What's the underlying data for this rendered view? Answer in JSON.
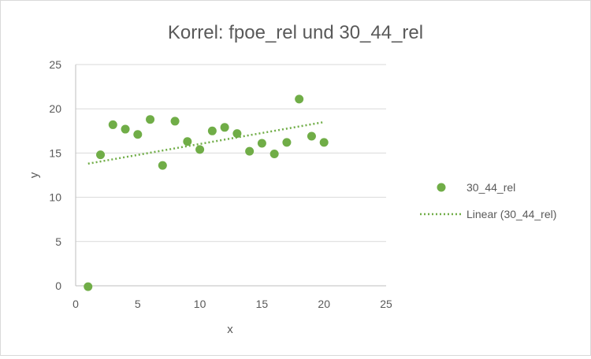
{
  "chart_data": {
    "type": "scatter",
    "title": "Korrel: fpoe_rel und 30_44_rel",
    "xlabel": "x",
    "ylabel": "y",
    "xlim": [
      0,
      25
    ],
    "ylim": [
      0,
      25
    ],
    "xticks": [
      0,
      5,
      10,
      15,
      20,
      25
    ],
    "yticks": [
      0,
      5,
      10,
      15,
      20,
      25
    ],
    "grid": "horizontal",
    "legend_position": "right",
    "series": [
      {
        "name": "30_44_rel",
        "color": "#70AD47",
        "x": [
          1,
          2,
          3,
          4,
          5,
          6,
          7,
          8,
          9,
          10,
          11,
          12,
          13,
          14,
          15,
          16,
          17,
          18,
          19,
          20
        ],
        "y": [
          -0.1,
          14.8,
          18.2,
          17.7,
          17.1,
          18.8,
          13.6,
          18.6,
          16.3,
          15.4,
          17.5,
          17.9,
          17.2,
          15.2,
          16.1,
          14.9,
          16.2,
          21.1,
          16.9,
          16.2
        ]
      }
    ],
    "trendline": {
      "name": "Linear (30_44_rel)",
      "type": "linear",
      "color": "#70AD47",
      "x_start": 1,
      "x_end": 20,
      "y_start": 13.8,
      "y_end": 18.5
    }
  }
}
